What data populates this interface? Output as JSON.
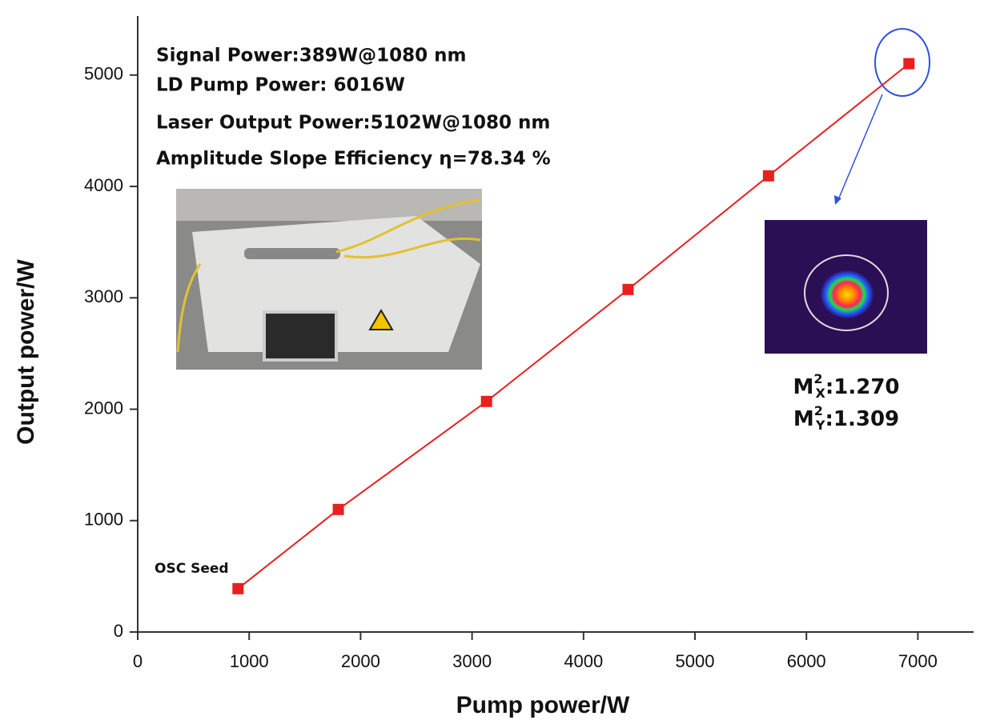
{
  "chart_data": {
    "type": "line",
    "x_label": "Pump power/W",
    "y_label": "Output power/W",
    "x": [
      900,
      1800,
      3130,
      4400,
      5660,
      6920
    ],
    "series": [
      {
        "color": "#e8201f",
        "values": [
          389,
          1100,
          2070,
          3075,
          4095,
          5102
        ]
      }
    ],
    "xlim": [
      0,
      7500
    ],
    "ylim": [
      0,
      5530
    ],
    "xticks": [
      0,
      1000,
      2000,
      3000,
      4000,
      5000,
      6000,
      7000
    ],
    "yticks": [
      0,
      1000,
      2000,
      3000,
      4000,
      5000
    ],
    "annotations": [
      "Signal Power:389W@1080 nm",
      "LD Pump Power: 6016W",
      "Laser Output Power:5102W@1080 nm",
      "Amplitude Slope Efficiency  η=78.34 %"
    ],
    "seed_label": "OSC Seed",
    "beam_quality": [
      {
        "base": "M",
        "sup": "2",
        "sub": "X",
        "text": ":1.270"
      },
      {
        "base": "M",
        "sup": "2",
        "sub": "Y",
        "text": ":1.309"
      }
    ]
  }
}
